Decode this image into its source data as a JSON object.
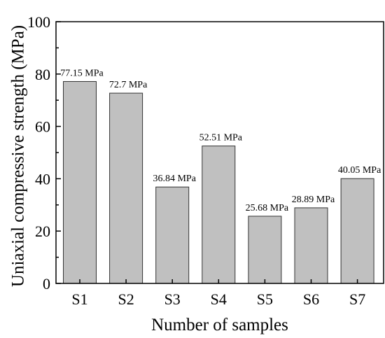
{
  "chart_data": {
    "type": "bar",
    "title": "",
    "xlabel": "Number of samples",
    "ylabel": "Uniaxial compressive strength (MPa)",
    "ylim": [
      0,
      100
    ],
    "yticks": [
      0,
      20,
      40,
      60,
      80,
      100
    ],
    "grid": false,
    "categories": [
      "S1",
      "S2",
      "S3",
      "S4",
      "S5",
      "S6",
      "S7"
    ],
    "values": [
      77.15,
      72.7,
      36.84,
      52.51,
      25.68,
      28.89,
      40.05
    ],
    "data_labels": [
      "77.15 MPa",
      "72.7 MPa",
      "36.84 MPa",
      "52.51 MPa",
      "25.68 MPa",
      "28.89 MPa",
      "40.05 MPa"
    ],
    "bar_color": "#c0c0c0"
  }
}
